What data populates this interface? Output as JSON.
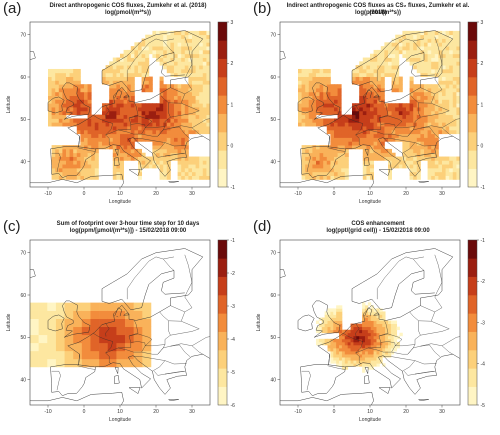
{
  "chart_data": [
    {
      "type": "heatmap",
      "panel_label": "(a)",
      "title": "Direct anthropogenic COS fluxes, Zumkehr et al. (2018)",
      "subtitle": "log(pmol/(m²*s))",
      "xlabel": "Longitude",
      "ylabel": "Latitude",
      "x_ticks": [
        -10,
        0,
        10,
        20,
        30
      ],
      "y_ticks": [
        40,
        50,
        60,
        70
      ],
      "xlim": [
        -15,
        35
      ],
      "ylim": [
        34,
        73
      ],
      "colorbar": {
        "ticks": [
          3,
          2,
          1,
          0,
          -1
        ],
        "range": [
          -1,
          3
        ]
      },
      "palette": [
        "#fff5c4",
        "#fde7a0",
        "#fcd07a",
        "#f9b25a",
        "#f28c3c",
        "#e06428",
        "#c63e1a",
        "#9b1e10",
        "#6b0a0a"
      ],
      "hotspots": [
        {
          "lon": 19,
          "lat": 52,
          "value": 2.4
        },
        {
          "lon": 8,
          "lat": 51,
          "value": 2.2
        },
        {
          "lon": 2,
          "lat": 48.5,
          "value": 1.8
        },
        {
          "lon": -1,
          "lat": 53,
          "value": 1.9
        },
        {
          "lon": 12,
          "lat": 45,
          "value": 1.6
        },
        {
          "lon": -4,
          "lat": 40,
          "value": 1.2
        },
        {
          "lon": 27,
          "lat": 45,
          "value": 1.3
        },
        {
          "lon": 15,
          "lat": 50,
          "value": 1.7
        }
      ]
    },
    {
      "type": "heatmap",
      "panel_label": "(b)",
      "title": "Indirect anthropogenic COS fluxes as CS₂ fluxes, Zumkehr et al. (2018)",
      "subtitle": "log(pmol/(m²*s))",
      "xlabel": "Longitude",
      "ylabel": "Latitude",
      "x_ticks": [
        -10,
        0,
        10,
        20,
        30
      ],
      "y_ticks": [
        40,
        50,
        60,
        70
      ],
      "xlim": [
        -15,
        35
      ],
      "ylim": [
        34,
        73
      ],
      "colorbar": {
        "ticks": [
          3,
          2,
          1,
          0,
          -1
        ],
        "range": [
          -1,
          3
        ]
      },
      "palette": [
        "#fff5c4",
        "#fde7a0",
        "#fcd07a",
        "#f9b25a",
        "#f28c3c",
        "#e06428",
        "#c63e1a",
        "#9b1e10",
        "#6b0a0a"
      ],
      "hotspots": [
        {
          "lon": 6,
          "lat": 51.5,
          "value": 2.6
        },
        {
          "lon": 19,
          "lat": 52,
          "value": 2.0
        },
        {
          "lon": 1,
          "lat": 49,
          "value": 1.8
        },
        {
          "lon": -1,
          "lat": 53,
          "value": 1.9
        },
        {
          "lon": 13,
          "lat": 46,
          "value": 1.5
        },
        {
          "lon": -4,
          "lat": 40,
          "value": 1.1
        },
        {
          "lon": 27,
          "lat": 45,
          "value": 1.2
        },
        {
          "lon": 15,
          "lat": 50,
          "value": 1.6
        }
      ]
    },
    {
      "type": "heatmap",
      "panel_label": "(c)",
      "title": "Sum of footprint over 3-hour time step for 10 days",
      "subtitle": "log(ppm/[µmol/(m²*s)]) - 15/02/2018 09:00",
      "xlabel": "Longitude",
      "ylabel": "Latitude",
      "x_ticks": [
        -10,
        0,
        10,
        20,
        30
      ],
      "y_ticks": [
        40,
        50,
        60,
        70
      ],
      "xlim": [
        -15,
        35
      ],
      "ylim": [
        34,
        73
      ],
      "colorbar": {
        "ticks": [
          -1,
          -2,
          -3,
          -4,
          -5,
          -6
        ],
        "range": [
          -6,
          -1
        ]
      },
      "palette": [
        "#fff5c4",
        "#fde7a0",
        "#fcd07a",
        "#f9b25a",
        "#f28c3c",
        "#e06428",
        "#c63e1a",
        "#9b1e10",
        "#6b0a0a"
      ],
      "footprint_extent": {
        "lon": [
          -15,
          18
        ],
        "lat": [
          43,
          58
        ]
      },
      "hotspots": [
        {
          "lon": 7,
          "lat": 50,
          "value": -2.0
        },
        {
          "lon": 4,
          "lat": 51,
          "value": -2.5
        },
        {
          "lon": 11,
          "lat": 49.5,
          "value": -3.0
        }
      ]
    },
    {
      "type": "heatmap",
      "panel_label": "(d)",
      "title": "COS enhancement",
      "subtitle": "log(ppt/(grid cell)) - 15/02/2018 09:00",
      "xlabel": "Longitude",
      "ylabel": "Latitude",
      "x_ticks": [
        -10,
        0,
        10,
        20,
        30
      ],
      "y_ticks": [
        40,
        50,
        60,
        70
      ],
      "xlim": [
        -15,
        35
      ],
      "ylim": [
        34,
        73
      ],
      "colorbar": {
        "ticks": [
          -1,
          -2,
          -3,
          -4,
          -5
        ],
        "range": [
          -5,
          -1
        ]
      },
      "palette": [
        "#fff5c4",
        "#fde7a0",
        "#fcd07a",
        "#f9b25a",
        "#f28c3c",
        "#e06428",
        "#c63e1a",
        "#9b1e10",
        "#6b0a0a"
      ],
      "hotspots": [
        {
          "lon": 7,
          "lat": 50,
          "value": -1.5
        },
        {
          "lon": 4.5,
          "lat": 51,
          "value": -2.0
        },
        {
          "lon": 2,
          "lat": 48.5,
          "value": -2.8
        },
        {
          "lon": 10,
          "lat": 49,
          "value": -3.0
        }
      ]
    }
  ]
}
